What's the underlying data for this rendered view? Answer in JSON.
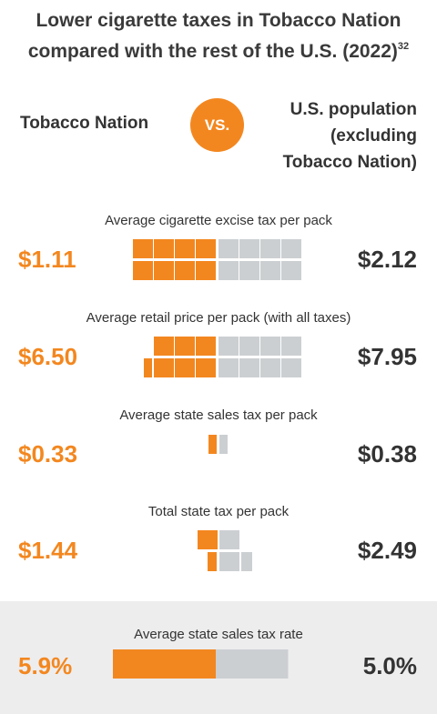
{
  "title": {
    "text": "Lower cigarette taxes in Tobacco Nation compared with the rest of the U.S. (2022)",
    "footnote": "32"
  },
  "left_heading": "Tobacco Nation",
  "vs_label": "VS.",
  "right_heading": "U.S. population\n(excluding\nTobacco Nation)",
  "colors": {
    "accent": "#f3871f",
    "neutral": "#cccfd2",
    "text": "#333333",
    "panel": "#ededee"
  },
  "chart_data": [
    {
      "type": "bar",
      "title": "Average cigarette excise tax per pack",
      "series": [
        {
          "name": "Tobacco Nation",
          "values": [
            1.11
          ],
          "label": "$1.11"
        },
        {
          "name": "U.S. population (excluding Tobacco Nation)",
          "values": [
            2.12
          ],
          "label": "$2.12"
        }
      ]
    },
    {
      "type": "bar",
      "title": "Average retail price per pack (with all taxes)",
      "series": [
        {
          "name": "Tobacco Nation",
          "values": [
            6.5
          ],
          "label": "$6.50"
        },
        {
          "name": "U.S. population (excluding Tobacco Nation)",
          "values": [
            7.95
          ],
          "label": "$7.95"
        }
      ]
    },
    {
      "type": "bar",
      "title": "Average state sales tax per pack",
      "series": [
        {
          "name": "Tobacco Nation",
          "values": [
            0.33
          ],
          "label": "$0.33"
        },
        {
          "name": "U.S. population (excluding Tobacco Nation)",
          "values": [
            0.38
          ],
          "label": "$0.38"
        }
      ]
    },
    {
      "type": "bar",
      "title": "Total state tax per pack",
      "series": [
        {
          "name": "Tobacco Nation",
          "values": [
            1.44
          ],
          "label": "$1.44"
        },
        {
          "name": "U.S. population (excluding Tobacco Nation)",
          "values": [
            2.49
          ],
          "label": "$2.49"
        }
      ]
    },
    {
      "type": "bar",
      "title": "Average state sales tax rate",
      "series": [
        {
          "name": "Tobacco Nation",
          "values": [
            5.9
          ],
          "label": "5.9%"
        },
        {
          "name": "U.S. population (excluding Tobacco Nation)",
          "values": [
            5.0
          ],
          "label": "5.0%"
        }
      ]
    }
  ]
}
